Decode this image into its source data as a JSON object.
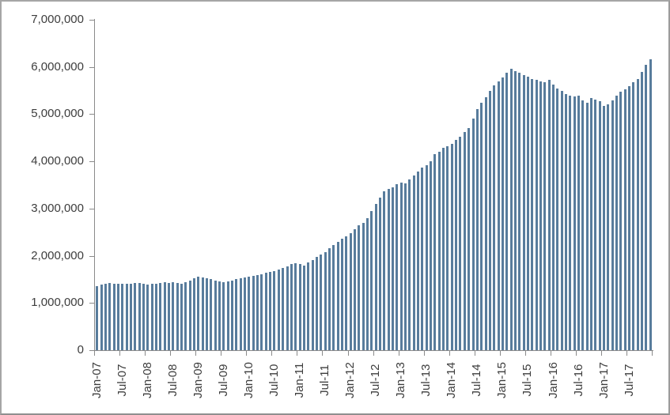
{
  "window": {
    "background_color": "#ffffff",
    "border_color": "#a6a6a6"
  },
  "chart_data": {
    "type": "bar",
    "title": "",
    "xlabel": "",
    "ylabel": "",
    "ylim": [
      0,
      7000000
    ],
    "grid": "off",
    "legend": "none",
    "bar_color": "#587c9c",
    "axis_color": "#8a8a8a",
    "label_color": "#3d3d3d",
    "y_tick_labels": [
      "0",
      "1,000,000",
      "2,000,000",
      "3,000,000",
      "4,000,000",
      "5,000,000",
      "6,000,000",
      "7,000,000"
    ],
    "x_label_interval": 6,
    "x_tick_labels": [
      "Jan-07",
      "Jul-07",
      "Jan-08",
      "Jul-08",
      "Jan-09",
      "Jul-09",
      "Jan-10",
      "Jul-10",
      "Jan-11",
      "Jul-11",
      "Jan-12",
      "Jul-12",
      "Jan-13",
      "Jul-13",
      "Jan-14",
      "Jul-14",
      "Jan-15",
      "Jul-15",
      "Jan-16",
      "Jul-16",
      "Jan-17",
      "Jul-17"
    ],
    "categories": [
      "Jan-07",
      "Feb-07",
      "Mar-07",
      "Apr-07",
      "May-07",
      "Jun-07",
      "Jul-07",
      "Aug-07",
      "Sep-07",
      "Oct-07",
      "Nov-07",
      "Dec-07",
      "Jan-08",
      "Feb-08",
      "Mar-08",
      "Apr-08",
      "May-08",
      "Jun-08",
      "Jul-08",
      "Aug-08",
      "Sep-08",
      "Oct-08",
      "Nov-08",
      "Dec-08",
      "Jan-09",
      "Feb-09",
      "Mar-09",
      "Apr-09",
      "May-09",
      "Jun-09",
      "Jul-09",
      "Aug-09",
      "Sep-09",
      "Oct-09",
      "Nov-09",
      "Dec-09",
      "Jan-10",
      "Feb-10",
      "Mar-10",
      "Apr-10",
      "May-10",
      "Jun-10",
      "Jul-10",
      "Aug-10",
      "Sep-10",
      "Oct-10",
      "Nov-10",
      "Dec-10",
      "Jan-11",
      "Feb-11",
      "Mar-11",
      "Apr-11",
      "May-11",
      "Jun-11",
      "Jul-11",
      "Aug-11",
      "Sep-11",
      "Oct-11",
      "Nov-11",
      "Dec-11",
      "Jan-12",
      "Feb-12",
      "Mar-12",
      "Apr-12",
      "May-12",
      "Jun-12",
      "Jul-12",
      "Aug-12",
      "Sep-12",
      "Oct-12",
      "Nov-12",
      "Dec-12",
      "Jan-13",
      "Feb-13",
      "Mar-13",
      "Apr-13",
      "May-13",
      "Jun-13",
      "Jul-13",
      "Aug-13",
      "Sep-13",
      "Oct-13",
      "Nov-13",
      "Dec-13",
      "Jan-14",
      "Feb-14",
      "Mar-14",
      "Apr-14",
      "May-14",
      "Jun-14",
      "Jul-14",
      "Aug-14",
      "Sep-14",
      "Oct-14",
      "Nov-14",
      "Dec-14",
      "Jan-15",
      "Feb-15",
      "Mar-15",
      "Apr-15",
      "May-15",
      "Jun-15",
      "Jul-15",
      "Aug-15",
      "Sep-15",
      "Oct-15",
      "Nov-15",
      "Dec-15",
      "Jan-16",
      "Feb-16",
      "Mar-16",
      "Apr-16",
      "May-16",
      "Jun-16",
      "Jul-16",
      "Aug-16",
      "Sep-16",
      "Oct-16",
      "Nov-16",
      "Dec-16",
      "Jan-17",
      "Feb-17",
      "Mar-17",
      "Apr-17",
      "May-17",
      "Jun-17",
      "Jul-17",
      "Aug-17",
      "Sep-17",
      "Oct-17",
      "Nov-17",
      "Dec-17"
    ],
    "values": [
      1360000,
      1390000,
      1410000,
      1420000,
      1410000,
      1400000,
      1400000,
      1410000,
      1410000,
      1420000,
      1430000,
      1400000,
      1390000,
      1400000,
      1410000,
      1420000,
      1440000,
      1420000,
      1440000,
      1430000,
      1410000,
      1440000,
      1480000,
      1520000,
      1550000,
      1540000,
      1520000,
      1500000,
      1480000,
      1460000,
      1440000,
      1460000,
      1470000,
      1500000,
      1520000,
      1540000,
      1550000,
      1570000,
      1590000,
      1610000,
      1640000,
      1650000,
      1680000,
      1710000,
      1740000,
      1780000,
      1820000,
      1850000,
      1830000,
      1800000,
      1860000,
      1910000,
      1970000,
      2020000,
      2080000,
      2160000,
      2220000,
      2300000,
      2360000,
      2420000,
      2480000,
      2560000,
      2640000,
      2700000,
      2800000,
      2940000,
      3090000,
      3230000,
      3370000,
      3410000,
      3450000,
      3520000,
      3550000,
      3530000,
      3620000,
      3700000,
      3790000,
      3870000,
      3920000,
      4010000,
      4150000,
      4200000,
      4290000,
      4320000,
      4370000,
      4460000,
      4530000,
      4620000,
      4710000,
      4900000,
      5100000,
      5250000,
      5360000,
      5500000,
      5610000,
      5700000,
      5780000,
      5870000,
      5970000,
      5920000,
      5880000,
      5830000,
      5790000,
      5750000,
      5720000,
      5700000,
      5680000,
      5730000,
      5620000,
      5550000,
      5490000,
      5430000,
      5400000,
      5380000,
      5400000,
      5300000,
      5240000,
      5340000,
      5310000,
      5280000,
      5180000,
      5210000,
      5300000,
      5390000,
      5470000,
      5530000,
      5600000,
      5680000,
      5750000,
      5890000,
      6040000,
      6170000
    ]
  }
}
